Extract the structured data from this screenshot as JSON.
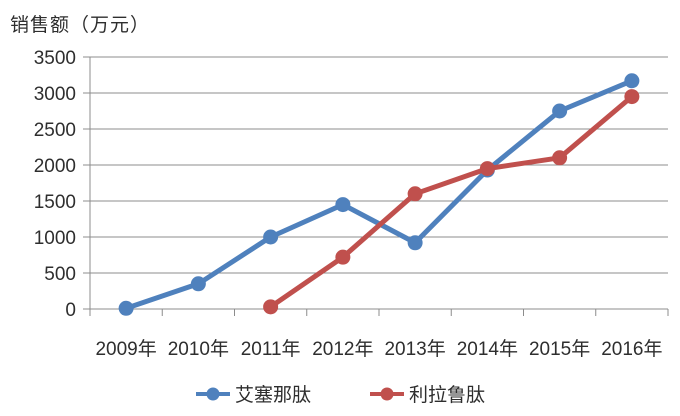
{
  "page": {
    "background_color": "#ffffff",
    "text_color": "#2e2e2e",
    "axis_color": "#8c8c8c"
  },
  "chart_data": {
    "type": "line",
    "title": "销售额（万元）",
    "xlabel": "",
    "ylabel": "销售额（万元）",
    "categories": [
      "2009年",
      "2010年",
      "2011年",
      "2012年",
      "2013年",
      "2014年",
      "2015年",
      "2016年"
    ],
    "series": [
      {
        "name": "艾塞那肽",
        "color": "#4F81BD",
        "values": [
          10,
          350,
          1000,
          1450,
          920,
          1930,
          2750,
          3170
        ]
      },
      {
        "name": "利拉鲁肽",
        "color": "#C0504D",
        "values": [
          null,
          null,
          30,
          720,
          1600,
          1950,
          2100,
          2950
        ]
      }
    ],
    "ylim": [
      0,
      3500
    ],
    "ytick_step": 500,
    "yticks": [
      0,
      500,
      1000,
      1500,
      2000,
      2500,
      3000,
      3500
    ],
    "grid": "horizontal",
    "legend_position": "bottom",
    "marker": "circle"
  }
}
